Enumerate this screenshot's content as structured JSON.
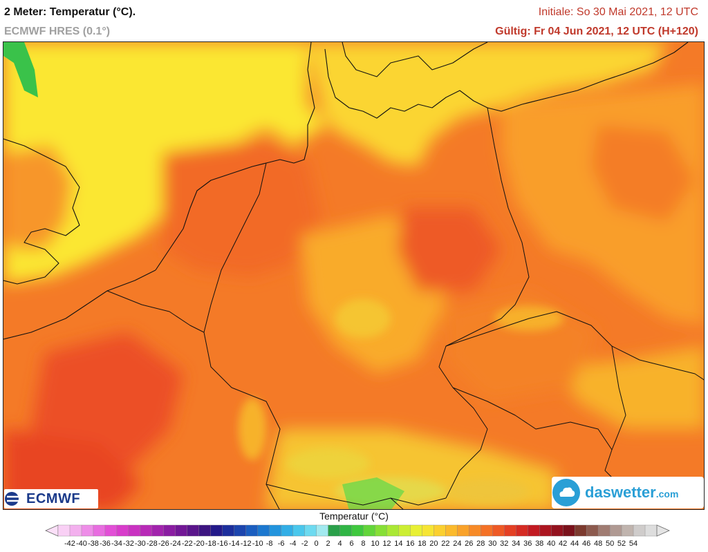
{
  "header": {
    "title": "2 Meter: Temperatur (°C).",
    "subtitle": "ECMWF HRES (0.1°)",
    "initial": "Initiale: So 30 Mai 2021, 12 UTC",
    "valid": "Gültig: Fr 04 Jun 2021, 12 UTC (H+120)"
  },
  "logos": {
    "ecmwf": "ECMWF",
    "daswetter": "daswetter",
    "daswetter_suffix": ".com"
  },
  "legend": {
    "title": "Temperatur (°C)",
    "ticks": [
      "-42",
      "-40",
      "-38",
      "-36",
      "-34",
      "-32",
      "-30",
      "-28",
      "-26",
      "-24",
      "-22",
      "-20",
      "-18",
      "-16",
      "-14",
      "-12",
      "-10",
      "-8",
      "-6",
      "-4",
      "-2",
      "0",
      "2",
      "4",
      "6",
      "8",
      "10",
      "12",
      "14",
      "16",
      "18",
      "20",
      "22",
      "24",
      "26",
      "28",
      "30",
      "32",
      "34",
      "36",
      "38",
      "40",
      "42",
      "44",
      "46",
      "48",
      "50",
      "52",
      "54"
    ],
    "colors": [
      "#f9d0f5",
      "#f3b0ee",
      "#ee8de8",
      "#e86de0",
      "#e24fd6",
      "#d83ccb",
      "#c932c1",
      "#b82ab7",
      "#a223ad",
      "#8a1ca2",
      "#721796",
      "#5a158b",
      "#3c1480",
      "#23198a",
      "#1c2e9c",
      "#1c45ae",
      "#1b5ec0",
      "#1c78cf",
      "#2294dd",
      "#32aee6",
      "#4ac7ec",
      "#6ddaf0",
      "#a2e9ef",
      "#2aa04a",
      "#30b545",
      "#3fc83e",
      "#62d53a",
      "#86df36",
      "#aae834",
      "#ccee33",
      "#e8f034",
      "#f6e534",
      "#fbd030",
      "#fbba2c",
      "#f9a22a",
      "#f78a27",
      "#f47126",
      "#ee5925",
      "#e44024",
      "#d52b23",
      "#c21a22",
      "#ac1520",
      "#93121e",
      "#7a111b",
      "#7c3a2e",
      "#8c5a4e",
      "#a07c72",
      "#b09a93",
      "#c0b4ae",
      "#cfcccb",
      "#dddddd"
    ]
  }
}
